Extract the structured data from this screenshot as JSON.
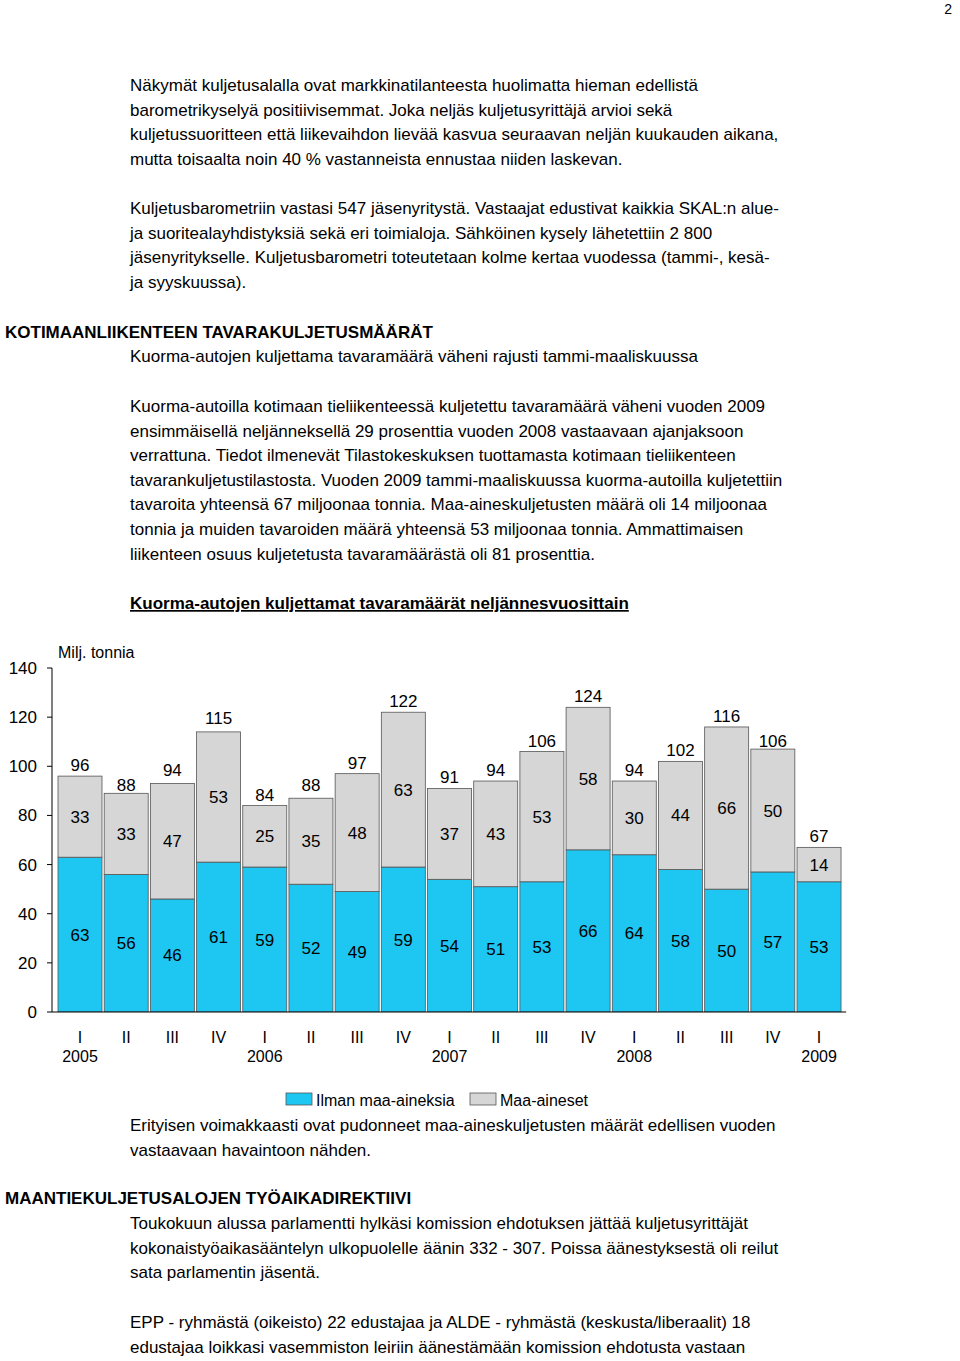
{
  "page_number": "2",
  "intro_paragraphs": [
    [
      "Näkymät kuljetusalalla ovat markkinatilanteesta huolimatta hieman edellistä",
      "barometrikyselyä positiivisemmat. Joka neljäs kuljetusyrittäjä arvioi sekä",
      "kuljetussuoritteen että liikevaihdon lievää kasvua seuraavan neljän kuukauden aikana,",
      "mutta toisaalta noin 40 % vastanneista ennustaa niiden laskevan."
    ],
    [
      "Kuljetusbarometriin vastasi 547 jäsenyritystä. Vastaajat edustivat kaikkia SKAL:n alue-",
      "ja suoritealayhdistyksiä sekä eri toimialoja. Sähköinen kysely lähetettiin 2 800",
      "jäsenyritykselle. Kuljetusbarometri toteutetaan kolme kertaa vuodessa (tammi-, kesä-",
      "ja syyskuussa)."
    ]
  ],
  "section1": {
    "heading": "KOTIMAANLIIKENTEEN TAVARAKULJETUSMÄÄRÄT",
    "subheading": "Kuorma-autojen kuljettama tavaramäärä väheni rajusti tammi-maaliskuussa",
    "paragraph": [
      "Kuorma-autoilla kotimaan tieliikenteessä kuljetettu tavaramäärä väheni vuoden 2009",
      "ensimmäisellä neljänneksellä 29 prosenttia vuoden 2008 vastaavaan ajanjaksoon",
      "verrattuna. Tiedot ilmenevät Tilastokeskuksen tuottamasta kotimaan tieliikenteen",
      "tavarankuljetustilastosta. Vuoden 2009 tammi-maaliskuussa kuorma-autoilla kuljetettiin",
      "tavaroita yhteensä 67 miljoonaa tonnia. Maa-aineskuljetusten määrä oli 14 miljoonaa",
      "tonnia ja muiden tavaroiden määrä yhteensä 53 miljoonaa tonnia. Ammattimaisen",
      "liikenteen osuus kuljetetusta tavaramäärästä oli 81 prosenttia."
    ]
  },
  "chart_data": {
    "type": "bar",
    "title": "Kuorma-autojen kuljettamat tavaramäärät neljännesvuosittain",
    "y_label": "Milj. tonnia",
    "stacked": true,
    "data_labels": true,
    "grid": false,
    "categories": [
      "I",
      "II",
      "III",
      "IV",
      "I",
      "II",
      "III",
      "IV",
      "I",
      "II",
      "III",
      "IV",
      "I",
      "II",
      "III",
      "IV",
      "I"
    ],
    "category_years": [
      "2005",
      null,
      null,
      null,
      "2006",
      null,
      null,
      null,
      "2007",
      null,
      null,
      null,
      "2008",
      null,
      null,
      null,
      "2009"
    ],
    "series": [
      {
        "name": "Ilman maa-aineksia",
        "color": "#1ec6f2",
        "values": [
          63,
          56,
          46,
          61,
          59,
          52,
          49,
          59,
          54,
          51,
          53,
          66,
          64,
          58,
          50,
          57,
          53
        ]
      },
      {
        "name": "Maa-aineset",
        "color": "#d6d6d6",
        "values": [
          33,
          33,
          47,
          53,
          25,
          35,
          48,
          63,
          37,
          43,
          53,
          58,
          30,
          44,
          66,
          50,
          14
        ]
      }
    ],
    "totals": [
      96,
      88,
      94,
      115,
      84,
      88,
      97,
      122,
      91,
      94,
      106,
      124,
      94,
      102,
      116,
      106,
      67
    ],
    "ylim": [
      0,
      140
    ],
    "yticks": [
      0,
      20,
      40,
      60,
      80,
      100,
      120,
      140
    ]
  },
  "chart_caption": [
    "Erityisen voimakkaasti ovat pudonneet maa-aineskuljetusten määrät edellisen vuoden",
    "vastaavaan havaintoon nähden."
  ],
  "section2": {
    "heading": "MAANTIEKULJETUSALOJEN TYÖAIKADIREKTIIVI",
    "paragraphs": [
      [
        "Toukokuun alussa parlamentti hylkäsi komission ehdotuksen jättää kuljetusyrittäjät",
        "kokonaistyöaikasääntelyn ulkopuolelle äänin 332 - 307.  Poissa äänestyksestä oli reilut",
        "sata parlamentin jäsentä."
      ],
      [
        "EPP - ryhmästä (oikeisto) 22 edustajaa ja ALDE - ryhmästä (keskusta/liberaalit) 18",
        "edustajaa loikkasi vasemmiston leiriin äänestämään komission ehdotusta vastaan"
      ]
    ]
  }
}
